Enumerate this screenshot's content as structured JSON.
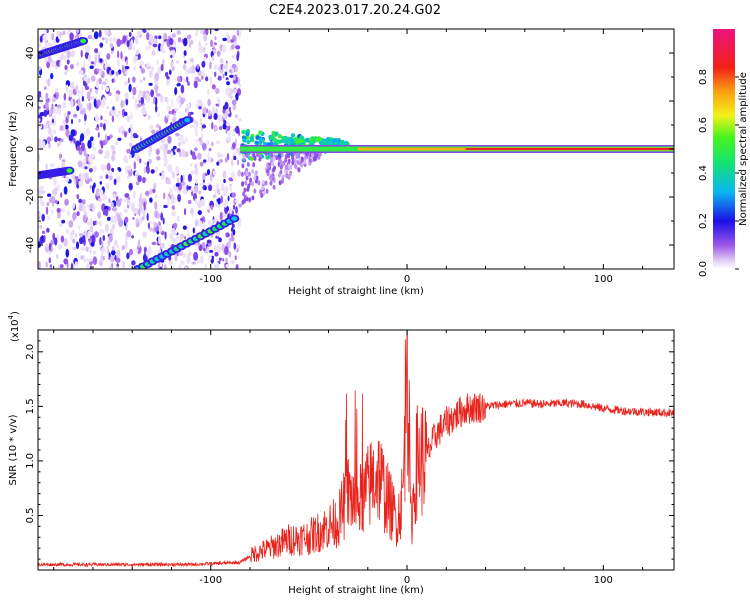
{
  "title": "C2E4.2023.017.20.24.G02",
  "colors": {
    "snr_line": "#e8231c",
    "frame": "#000000"
  },
  "chart_data": [
    {
      "type": "heatmap",
      "title": "C2E4.2023.017.20.24.G02",
      "xlabel": "Height of straight line (km)",
      "ylabel": "Frequency (Hz)",
      "xlim": [
        -188,
        136
      ],
      "ylim": [
        -50,
        50
      ],
      "x_ticks": [
        -100,
        0,
        100
      ],
      "y_ticks": [
        -40,
        -20,
        0,
        20,
        40
      ],
      "colorbar": {
        "label": "Normalized spectral amplitude",
        "range": [
          0.0,
          1.0
        ],
        "ticks": [
          "0.0",
          "0.2",
          "0.4",
          "0.6",
          "0.8"
        ],
        "colormap": "rainbow (white-violet-blue-cyan-green-yellow-red-magenta)"
      },
      "features": [
        {
          "name": "carrier",
          "x_range": [
            -85,
            136
          ],
          "frequency": 0,
          "peak_amplitude": 1.0
        },
        {
          "name": "diagonal-upper",
          "x": [
            -188,
            -165
          ],
          "frequency": [
            39,
            45
          ],
          "amplitude": 0.55
        },
        {
          "name": "diagonal-mid",
          "x": [
            -138,
            -112
          ],
          "frequency": [
            0,
            12
          ],
          "amplitude": 0.45
        },
        {
          "name": "diagonal-lower",
          "x": [
            -137,
            -88
          ],
          "frequency": [
            -50,
            -29
          ],
          "amplitude": 0.45
        },
        {
          "name": "left-band",
          "x": [
            -188,
            -172
          ],
          "frequency": [
            -11,
            -9
          ],
          "amplitude": 0.45
        }
      ]
    },
    {
      "type": "line",
      "xlabel": "Height of straight line (km)",
      "ylabel": "SNR (10 * v/v)",
      "y_exponent_label": "(x10",
      "y_exponent_power": "4",
      "y_exponent_close": ")",
      "xlim": [
        -188,
        136
      ],
      "ylim": [
        0,
        2.2
      ],
      "x_ticks": [
        -100,
        0,
        100
      ],
      "y_ticks": [
        "0.5",
        "1.0",
        "1.5",
        "2.0"
      ],
      "series": [
        {
          "x": [
            -188,
            -150,
            -110,
            -85,
            -78,
            -70,
            -60,
            -50,
            -42,
            -35,
            -30,
            -25,
            -20,
            -15,
            -10,
            -5,
            -2,
            0,
            2,
            5,
            10,
            15,
            20,
            25,
            30,
            40,
            50,
            60,
            70,
            80,
            90,
            100,
            110,
            120,
            136
          ],
          "y": [
            0.05,
            0.05,
            0.05,
            0.07,
            0.15,
            0.2,
            0.28,
            0.3,
            0.38,
            0.45,
            0.7,
            0.6,
            0.75,
            0.9,
            0.65,
            0.45,
            0.7,
            2.1,
            0.4,
            1.0,
            1.05,
            1.25,
            1.35,
            1.42,
            1.48,
            1.5,
            1.52,
            1.53,
            1.52,
            1.53,
            1.52,
            1.48,
            1.46,
            1.45,
            1.44
          ]
        }
      ]
    }
  ]
}
